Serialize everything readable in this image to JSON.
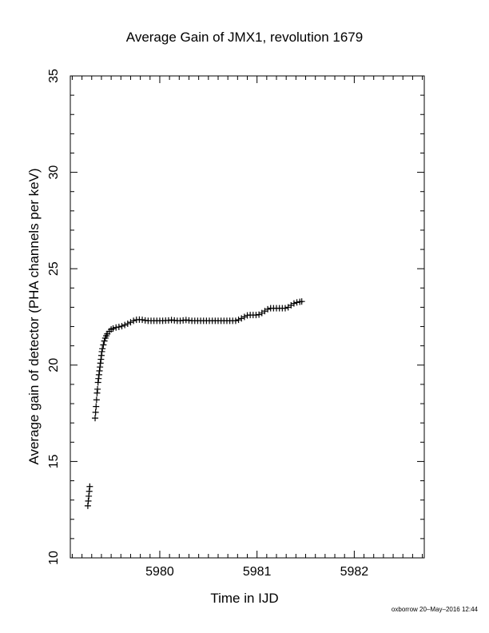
{
  "chart_data": {
    "type": "scatter",
    "title": "Average Gain of JMX1, revolution 1679",
    "xlabel": "Time in IJD",
    "ylabel": "Average gain of detector (PHA channels per keV)",
    "xlim": [
      5979.08,
      5982.72
    ],
    "ylim": [
      10,
      35
    ],
    "x_ticks": [
      5980,
      5981,
      5982
    ],
    "y_ticks": [
      10,
      15,
      20,
      25,
      30,
      35
    ],
    "marker": "plus",
    "grid": false,
    "series": [
      {
        "points": [
          [
            5979.26,
            12.7
          ],
          [
            5979.265,
            12.95
          ],
          [
            5979.27,
            13.2
          ],
          [
            5979.275,
            13.45
          ],
          [
            5979.28,
            13.7
          ],
          [
            5979.335,
            17.25
          ],
          [
            5979.34,
            17.55
          ],
          [
            5979.345,
            17.85
          ],
          [
            5979.35,
            18.2
          ],
          [
            5979.355,
            18.55
          ],
          [
            5979.36,
            18.75
          ],
          [
            5979.365,
            19.1
          ],
          [
            5979.37,
            19.3
          ],
          [
            5979.375,
            19.5
          ],
          [
            5979.38,
            19.7
          ],
          [
            5979.385,
            19.9
          ],
          [
            5979.39,
            20.1
          ],
          [
            5979.395,
            20.3
          ],
          [
            5979.4,
            20.5
          ],
          [
            5979.405,
            20.7
          ],
          [
            5979.41,
            20.85
          ],
          [
            5979.42,
            21.05
          ],
          [
            5979.43,
            21.25
          ],
          [
            5979.44,
            21.4
          ],
          [
            5979.45,
            21.52
          ],
          [
            5979.46,
            21.62
          ],
          [
            5979.48,
            21.75
          ],
          [
            5979.5,
            21.85
          ],
          [
            5979.52,
            21.9
          ],
          [
            5979.55,
            21.95
          ],
          [
            5979.58,
            21.98
          ],
          [
            5979.61,
            22.02
          ],
          [
            5979.64,
            22.08
          ],
          [
            5979.67,
            22.15
          ],
          [
            5979.7,
            22.22
          ],
          [
            5979.73,
            22.3
          ],
          [
            5979.76,
            22.35
          ],
          [
            5979.79,
            22.36
          ],
          [
            5979.82,
            22.35
          ],
          [
            5979.85,
            22.32
          ],
          [
            5979.88,
            22.3
          ],
          [
            5979.91,
            22.3
          ],
          [
            5979.94,
            22.3
          ],
          [
            5979.97,
            22.3
          ],
          [
            5980.0,
            22.3
          ],
          [
            5980.03,
            22.3
          ],
          [
            5980.06,
            22.31
          ],
          [
            5980.09,
            22.32
          ],
          [
            5980.12,
            22.34
          ],
          [
            5980.15,
            22.32
          ],
          [
            5980.18,
            22.3
          ],
          [
            5980.21,
            22.3
          ],
          [
            5980.24,
            22.32
          ],
          [
            5980.27,
            22.34
          ],
          [
            5980.3,
            22.32
          ],
          [
            5980.33,
            22.3
          ],
          [
            5980.36,
            22.3
          ],
          [
            5980.39,
            22.3
          ],
          [
            5980.42,
            22.3
          ],
          [
            5980.45,
            22.3
          ],
          [
            5980.48,
            22.3
          ],
          [
            5980.51,
            22.3
          ],
          [
            5980.54,
            22.3
          ],
          [
            5980.57,
            22.3
          ],
          [
            5980.6,
            22.3
          ],
          [
            5980.63,
            22.3
          ],
          [
            5980.66,
            22.3
          ],
          [
            5980.69,
            22.3
          ],
          [
            5980.72,
            22.3
          ],
          [
            5980.75,
            22.3
          ],
          [
            5980.78,
            22.3
          ],
          [
            5980.81,
            22.35
          ],
          [
            5980.84,
            22.42
          ],
          [
            5980.87,
            22.5
          ],
          [
            5980.9,
            22.58
          ],
          [
            5980.93,
            22.6
          ],
          [
            5980.96,
            22.6
          ],
          [
            5980.99,
            22.6
          ],
          [
            5981.02,
            22.62
          ],
          [
            5981.05,
            22.7
          ],
          [
            5981.08,
            22.8
          ],
          [
            5981.11,
            22.9
          ],
          [
            5981.14,
            22.95
          ],
          [
            5981.17,
            22.95
          ],
          [
            5981.2,
            22.95
          ],
          [
            5981.23,
            22.95
          ],
          [
            5981.26,
            22.95
          ],
          [
            5981.29,
            22.95
          ],
          [
            5981.32,
            23.0
          ],
          [
            5981.35,
            23.1
          ],
          [
            5981.38,
            23.2
          ],
          [
            5981.41,
            23.25
          ],
          [
            5981.44,
            23.28
          ],
          [
            5981.46,
            23.3
          ]
        ]
      }
    ]
  },
  "footer": {
    "credit": "oxborrow 20–May–2016 12:44"
  }
}
